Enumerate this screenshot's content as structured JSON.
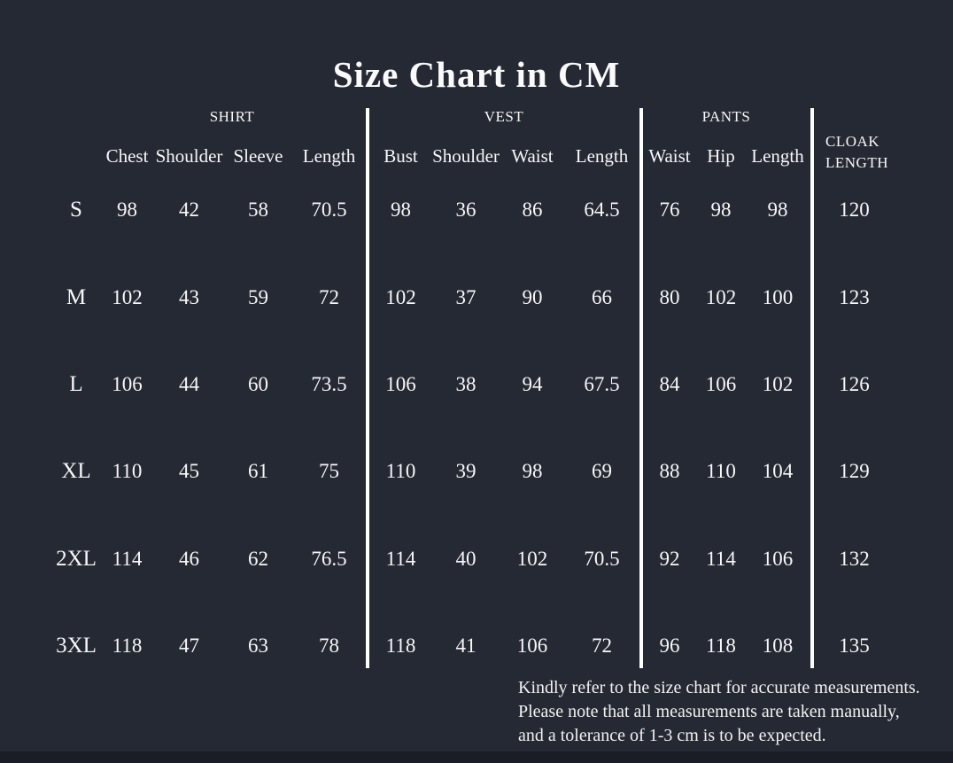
{
  "page": {
    "title": "Size Chart in CM",
    "background": "#252933",
    "text_color": "#f7f7f7",
    "divider_color": "#ffffff"
  },
  "chart_data": {
    "type": "table",
    "title": "Size Chart in CM",
    "unit": "cm",
    "groups": [
      {
        "label": "SHIRT",
        "columns": [
          "Chest",
          "Shoulder",
          "Sleeve",
          "Length"
        ]
      },
      {
        "label": "VEST",
        "columns": [
          "Bust",
          "Shoulder",
          "Waist",
          "Length"
        ]
      },
      {
        "label": "PANTS",
        "columns": [
          "Waist",
          "Hip",
          "Length"
        ]
      },
      {
        "label": "CLOAK LENGTH",
        "columns": []
      }
    ],
    "rows": [
      {
        "size": "S",
        "shirt": [
          98,
          42,
          58,
          70.5
        ],
        "vest": [
          98,
          36,
          86,
          64.5
        ],
        "pants": [
          76,
          98,
          98
        ],
        "cloak": 120
      },
      {
        "size": "M",
        "shirt": [
          102,
          43,
          59,
          72
        ],
        "vest": [
          102,
          37,
          90,
          66
        ],
        "pants": [
          80,
          102,
          100
        ],
        "cloak": 123
      },
      {
        "size": "L",
        "shirt": [
          106,
          44,
          60,
          73.5
        ],
        "vest": [
          106,
          38,
          94,
          67.5
        ],
        "pants": [
          84,
          106,
          102
        ],
        "cloak": 126
      },
      {
        "size": "XL",
        "shirt": [
          110,
          45,
          61,
          75
        ],
        "vest": [
          110,
          39,
          98,
          69
        ],
        "pants": [
          88,
          110,
          104
        ],
        "cloak": 129
      },
      {
        "size": "2XL",
        "shirt": [
          114,
          46,
          62,
          76.5
        ],
        "vest": [
          114,
          40,
          102,
          70.5
        ],
        "pants": [
          92,
          114,
          106
        ],
        "cloak": 132
      },
      {
        "size": "3XL",
        "shirt": [
          118,
          47,
          63,
          78
        ],
        "vest": [
          118,
          41,
          106,
          72
        ],
        "pants": [
          96,
          118,
          108
        ],
        "cloak": 135
      }
    ]
  },
  "footnote": {
    "line1": "Kindly refer to the size chart for accurate measurements.",
    "line2": "Please note that all measurements are taken manually,",
    "line3": "and a tolerance of 1-3 cm is to be expected."
  }
}
